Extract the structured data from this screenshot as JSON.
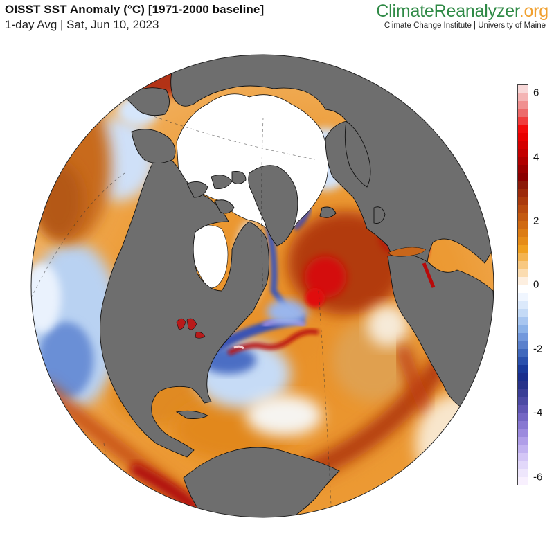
{
  "header": {
    "title": "OISST SST Anomaly (°C) [1971-2000 baseline]",
    "subtitle": "1-day Avg | Sat, Jun 10, 2023"
  },
  "brand": {
    "part1": "Climate",
    "part2": "Reanalyzer",
    "part3": ".org",
    "tagline": "Climate Change Institute | University of Maine",
    "colors": {
      "green": "#2f8a46",
      "orange": "#f0a030"
    }
  },
  "map": {
    "projection": "orthographic (Northern Hemisphere / North Atlantic centered)",
    "variable": "Sea Surface Temperature Anomaly",
    "units": "°C",
    "land_color": "#6e6e6e",
    "ice_color": "#ffffff",
    "features": [
      "Strong warm anomaly (>3°C) in North Atlantic west of Europe/Africa",
      "Gulf Stream warm filament with cold anomaly north of it",
      "Warm anomaly band along Peru/Ecuador coast (El Niño)",
      "Warm anomalies in Great Lakes and Mediterranean/Red Sea",
      "Cool anomalies in NE Pacific and Labrador / Baffin Bay",
      "Arctic sea ice in white"
    ]
  },
  "colorbar": {
    "min": -6,
    "max": 6,
    "ticks": [
      "6",
      "4",
      "2",
      "0",
      "-2",
      "-4",
      "-6"
    ],
    "steps": [
      "#f8d8d8",
      "#f4b4b4",
      "#f09090",
      "#ec6a6a",
      "#f03c3c",
      "#f20a0a",
      "#e80000",
      "#d40000",
      "#c40000",
      "#b00000",
      "#9a0000",
      "#8a0000",
      "#8c1a08",
      "#9c2a0a",
      "#aa3a0c",
      "#b84a0e",
      "#c45a10",
      "#d06a12",
      "#dc7c14",
      "#e68c18",
      "#f0a020",
      "#f4b450",
      "#f8c880",
      "#fbdcb0",
      "#fdefe0",
      "#ffffff",
      "#f0f6ff",
      "#dbe9fb",
      "#c4daf6",
      "#a8c6f0",
      "#8cb2e8",
      "#7298dc",
      "#5a80cc",
      "#4068bc",
      "#2a50ac",
      "#1a3a9a",
      "#1a2e8c",
      "#28338a",
      "#3a3e96",
      "#4c4aa4",
      "#6056b4",
      "#7466c4",
      "#8878d2",
      "#9c8ade",
      "#b09ee8",
      "#c2b2f0",
      "#d4c6f6",
      "#e2d8fa",
      "#eee6fc",
      "#f8f0fe"
    ]
  }
}
